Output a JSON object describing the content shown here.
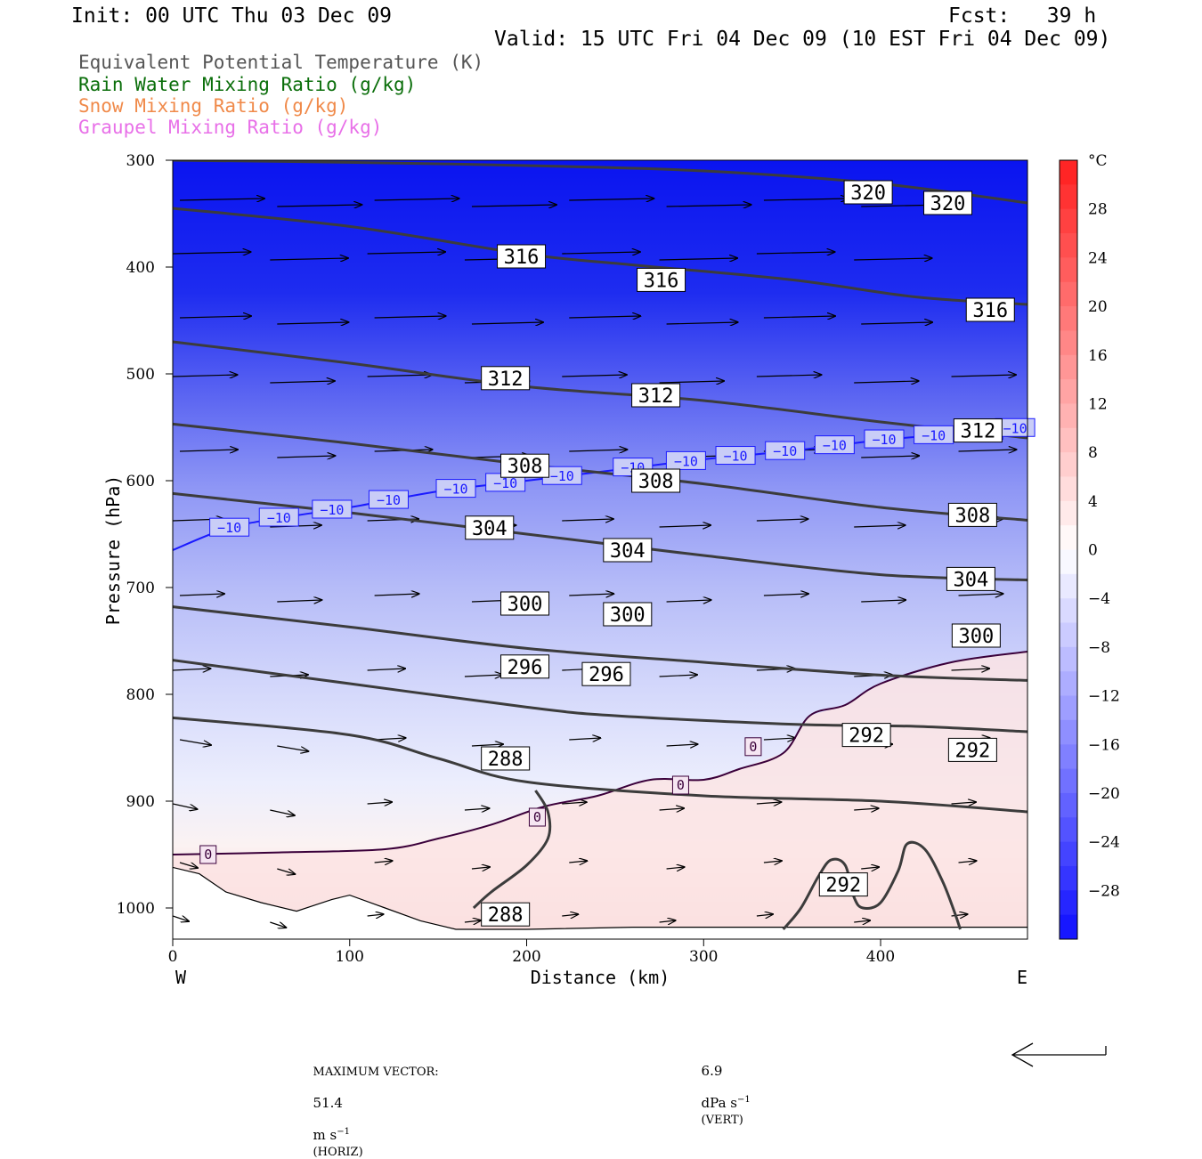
{
  "header": {
    "init": "Init: 00 UTC Thu 03 Dec 09",
    "fcst": "Fcst:   39 h",
    "valid": "Valid: 15 UTC Fri 04 Dec 09 (10 EST Fri 04 Dec 09)"
  },
  "legend": {
    "items": [
      {
        "label": "Equivalent Potential Temperature (K)",
        "color": "#555555"
      },
      {
        "label": "Rain Water Mixing Ratio (g/kg)",
        "color": "#0a6e0a"
      },
      {
        "label": "Snow Mixing Ratio (g/kg)",
        "color": "#f08a4a"
      },
      {
        "label": "Graupel Mixing Ratio (g/kg)",
        "color": "#e870e8"
      }
    ]
  },
  "chart_data": {
    "type": "contour-cross-section",
    "xlabel": "Distance (km)",
    "ylabel": "Pressure (hPa)",
    "xlim": [
      0,
      483
    ],
    "ylim": [
      1030,
      300
    ],
    "x_ticks": [
      0,
      100,
      200,
      300,
      400
    ],
    "y_ticks": [
      300,
      400,
      500,
      600,
      700,
      800,
      900,
      1000
    ],
    "x_end_labels": {
      "left": "W",
      "right": "E"
    },
    "colorbar": {
      "unit": "°C",
      "tick_values": [
        28,
        24,
        20,
        16,
        12,
        8,
        4,
        0,
        -4,
        -8,
        -12,
        -16,
        -20,
        -24,
        -28
      ],
      "tick_labels": [
        "28",
        "24",
        "20",
        "16",
        "12",
        "8",
        "4",
        "0",
        "−4",
        "−8",
        "−12",
        "−16",
        "−20",
        "−24",
        "−28"
      ],
      "range": [
        -32,
        32
      ]
    },
    "theta_e_contours": [
      {
        "value": 320,
        "points": [
          [
            0,
            300
          ],
          [
            100,
            302
          ],
          [
            200,
            305
          ],
          [
            300,
            310
          ],
          [
            400,
            322
          ],
          [
            483,
            340
          ]
        ],
        "labels": [
          {
            "text": "320",
            "at": [
              393,
              330
            ]
          },
          {
            "text": "320",
            "at": [
              438,
              340
            ]
          }
        ]
      },
      {
        "value": 316,
        "points": [
          [
            0,
            345
          ],
          [
            100,
            362
          ],
          [
            200,
            388
          ],
          [
            260,
            398
          ],
          [
            350,
            412
          ],
          [
            420,
            428
          ],
          [
            483,
            435
          ]
        ],
        "labels": [
          {
            "text": "316",
            "at": [
              197,
              390
            ]
          },
          {
            "text": "316",
            "at": [
              276,
              412
            ]
          },
          {
            "text": "316",
            "at": [
              462,
              440
            ]
          }
        ]
      },
      {
        "value": 312,
        "points": [
          [
            0,
            470
          ],
          [
            100,
            490
          ],
          [
            200,
            512
          ],
          [
            300,
            525
          ],
          [
            400,
            545
          ],
          [
            483,
            560
          ]
        ],
        "labels": [
          {
            "text": "312",
            "at": [
              188,
              504
            ]
          },
          {
            "text": "312",
            "at": [
              273,
              520
            ]
          },
          {
            "text": "312",
            "at": [
              455,
              553
            ]
          }
        ]
      },
      {
        "value": 308,
        "points": [
          [
            0,
            547
          ],
          [
            100,
            565
          ],
          [
            200,
            585
          ],
          [
            300,
            603
          ],
          [
            400,
            625
          ],
          [
            483,
            637
          ]
        ],
        "labels": [
          {
            "text": "308",
            "at": [
              199,
              586
            ]
          },
          {
            "text": "308",
            "at": [
              273,
              600
            ]
          },
          {
            "text": "308",
            "at": [
              452,
              632
            ]
          }
        ]
      },
      {
        "value": 304,
        "points": [
          [
            0,
            612
          ],
          [
            100,
            630
          ],
          [
            200,
            650
          ],
          [
            300,
            670
          ],
          [
            400,
            688
          ],
          [
            483,
            693
          ]
        ],
        "labels": [
          {
            "text": "304",
            "at": [
              179,
              644
            ]
          },
          {
            "text": "304",
            "at": [
              257,
              665
            ]
          },
          {
            "text": "304",
            "at": [
              451,
              692
            ]
          }
        ]
      },
      {
        "value": 300,
        "points": [
          [
            0,
            718
          ],
          [
            100,
            737
          ],
          [
            200,
            757
          ],
          [
            300,
            770
          ],
          [
            400,
            782
          ],
          [
            483,
            787
          ]
        ],
        "labels": [
          {
            "text": "300",
            "at": [
              199,
              715
            ]
          },
          {
            "text": "300",
            "at": [
              257,
              725
            ]
          },
          {
            "text": "300",
            "at": [
              454,
              745
            ]
          }
        ]
      },
      {
        "value": 296,
        "points": [
          [
            0,
            768
          ],
          [
            100,
            790
          ],
          [
            200,
            812
          ],
          [
            250,
            820
          ],
          [
            350,
            828
          ],
          [
            420,
            830
          ],
          [
            483,
            835
          ]
        ],
        "labels": [
          {
            "text": "296",
            "at": [
              199,
              774
            ]
          },
          {
            "text": "296",
            "at": [
              245,
              781
            ]
          }
        ]
      },
      {
        "value": 292,
        "points": [
          [
            0,
            822
          ],
          [
            100,
            838
          ],
          [
            150,
            860
          ],
          [
            200,
            882
          ],
          [
            300,
            895
          ],
          [
            400,
            900
          ],
          [
            483,
            910
          ]
        ],
        "labels": [
          {
            "text": "292",
            "at": [
              392,
              838
            ]
          },
          {
            "text": "292",
            "at": [
              452,
              852
            ]
          }
        ]
      },
      {
        "value": 288,
        "points": [
          [
            170,
            1000
          ],
          [
            180,
            985
          ],
          [
            200,
            960
          ],
          [
            212,
            935
          ],
          [
            212,
            910
          ],
          [
            205,
            890
          ]
        ],
        "labels": [
          {
            "text": "288",
            "at": [
              188,
              860
            ]
          },
          {
            "text": "288",
            "at": [
              188,
              1006
            ]
          }
        ]
      },
      {
        "value": 292,
        "points": [
          [
            345,
            1020
          ],
          [
            355,
            1000
          ],
          [
            365,
            970
          ],
          [
            372,
            955
          ],
          [
            380,
            960
          ],
          [
            385,
            990
          ],
          [
            390,
            1000
          ],
          [
            400,
            995
          ],
          [
            410,
            965
          ],
          [
            415,
            940
          ],
          [
            425,
            945
          ],
          [
            435,
            975
          ],
          [
            442,
            1005
          ],
          [
            445,
            1020
          ]
        ],
        "labels": [
          {
            "text": "292",
            "at": [
              379,
              978
            ]
          }
        ]
      }
    ],
    "temperature_contours": [
      {
        "value": -10,
        "color": "#1a1aff",
        "points": [
          [
            0,
            665
          ],
          [
            30,
            645
          ],
          [
            60,
            635
          ],
          [
            100,
            625
          ],
          [
            150,
            610
          ],
          [
            200,
            600
          ],
          [
            250,
            590
          ],
          [
            300,
            580
          ],
          [
            350,
            572
          ],
          [
            400,
            562
          ],
          [
            450,
            555
          ],
          [
            483,
            550
          ]
        ],
        "label_text": "−10",
        "label_x": [
          32,
          60,
          90,
          122,
          160,
          188,
          220,
          260,
          290,
          318,
          346,
          374,
          402,
          430,
          458,
          476
        ]
      },
      {
        "value": 0,
        "color": "#3a003a",
        "points": [
          [
            0,
            950
          ],
          [
            60,
            948
          ],
          [
            120,
            945
          ],
          [
            150,
            935
          ],
          [
            180,
            922
          ],
          [
            210,
            905
          ],
          [
            240,
            895
          ],
          [
            270,
            880
          ],
          [
            300,
            880
          ],
          [
            320,
            870
          ],
          [
            345,
            855
          ],
          [
            360,
            820
          ],
          [
            380,
            810
          ],
          [
            400,
            790
          ],
          [
            440,
            770
          ],
          [
            483,
            760
          ]
        ],
        "labels": [
          {
            "text": "0",
            "at": [
              20,
              950
            ]
          },
          {
            "text": "0",
            "at": [
              206,
              915
            ]
          },
          {
            "text": "0",
            "at": [
              287,
              885
            ]
          },
          {
            "text": "0",
            "at": [
              328,
              849
            ]
          }
        ]
      }
    ],
    "wind_rows_hpa": [
      340,
      390,
      450,
      505,
      575,
      640,
      710,
      780,
      845,
      905,
      960,
      1010
    ],
    "max_vector": {
      "label": "MAXIMUM VECTOR:",
      "horiz_value": "51.4",
      "horiz_unit": "m s",
      "horiz_exp": "−1",
      "horiz_tag": "(HORIZ)",
      "vert_value": "6.9",
      "vert_unit": "dPa s",
      "vert_exp": "−1",
      "vert_tag": "(VERT)"
    }
  }
}
